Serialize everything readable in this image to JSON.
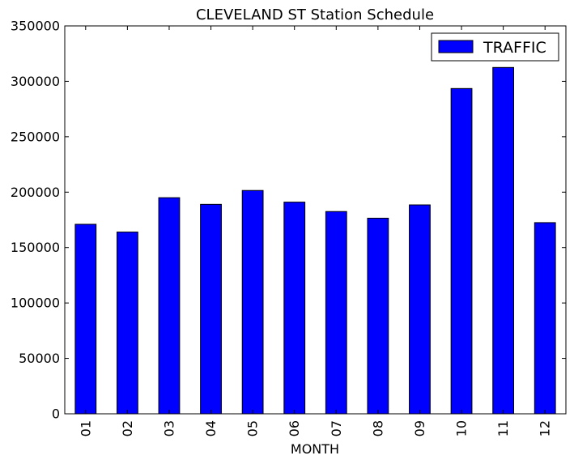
{
  "chart_data": {
    "type": "bar",
    "title": "CLEVELAND ST Station Schedule",
    "xlabel": "MONTH",
    "ylabel": "",
    "categories": [
      "01",
      "02",
      "03",
      "04",
      "05",
      "06",
      "07",
      "08",
      "09",
      "10",
      "11",
      "12"
    ],
    "series": [
      {
        "name": "TRAFFIC",
        "color": "#0000ff",
        "values": [
          171000,
          164000,
          195000,
          189000,
          201500,
          191000,
          182500,
          176500,
          188500,
          293500,
          312500,
          172500
        ]
      }
    ],
    "ylim": [
      0,
      350000
    ],
    "yticks": [
      "0",
      "50000",
      "100000",
      "150000",
      "200000",
      "250000",
      "300000",
      "350000"
    ],
    "grid": false,
    "legend_position": "top-right"
  }
}
